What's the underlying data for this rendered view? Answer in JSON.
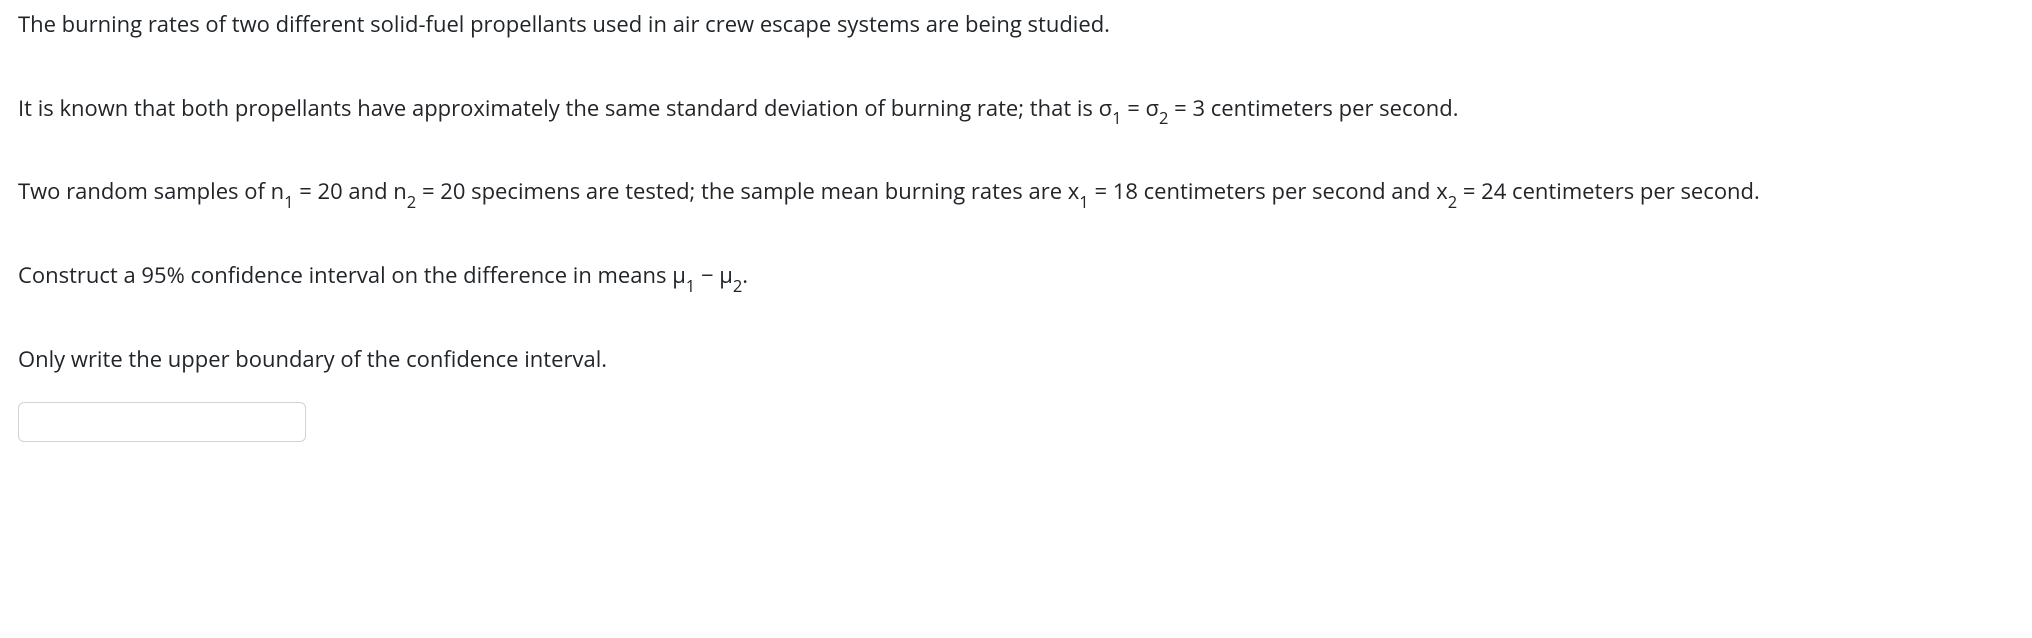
{
  "p1": "The burning rates of two different solid-fuel propellants used in air crew escape systems are being studied.",
  "p2": {
    "t1": "It is known that both propellants have approximately the same standard deviation of burning rate; that is σ",
    "s1": "1",
    "t2": " = σ",
    "s2": "2",
    "t3": " = 3 centimeters per second."
  },
  "p3": {
    "t1": "Two random samples of n",
    "s1": "1",
    "t2": " = 20 and n",
    "s2": "2",
    "t3": " = 20 specimens are tested; the sample mean burning rates are x",
    "s3": "1",
    "t4": " = 18 centimeters per second and x",
    "s4": "2",
    "t5": " = 24 centimeters per second."
  },
  "p4": {
    "t1": "Construct a 95% confidence interval on the difference in means μ",
    "s1": "1",
    "t2": " − μ",
    "s2": "2",
    "t3": "."
  },
  "p5": "Only write the upper boundary of the confidence interval.",
  "answer_value": ""
}
